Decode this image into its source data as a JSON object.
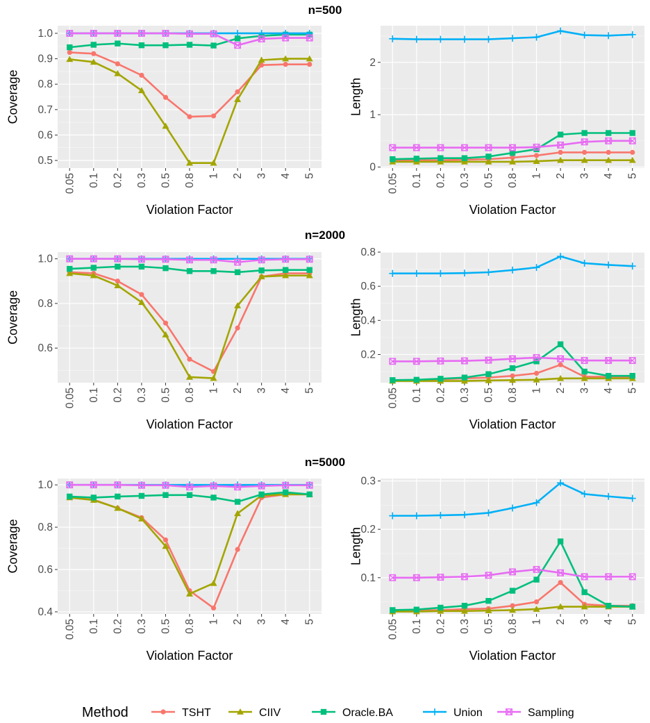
{
  "legend": {
    "title": "Method",
    "items": [
      {
        "label": "TSHT",
        "color": "#F8766D",
        "shape": "circle"
      },
      {
        "label": "CIIV",
        "color": "#A3A500",
        "shape": "triangle"
      },
      {
        "label": "Oracle.BA",
        "color": "#00BF7D",
        "shape": "square"
      },
      {
        "label": "Union",
        "color": "#00B0F6",
        "shape": "plus"
      },
      {
        "label": "Sampling",
        "color": "#E76BF3",
        "shape": "square-x"
      }
    ]
  },
  "chart_data": [
    {
      "type": "line",
      "title": "n=500",
      "xlabel": "Violation Factor",
      "ylabel": "Coverage",
      "categories": [
        "0.05",
        "0.1",
        "0.2",
        "0.3",
        "0.5",
        "0.8",
        "1",
        "2",
        "3",
        "4",
        "5"
      ],
      "ylim": [
        0.47,
        1.03
      ],
      "yticks": [
        0.5,
        0.6,
        0.7,
        0.8,
        0.9,
        1.0
      ],
      "ytick_labels": [
        "0.5",
        "0.6",
        "0.7",
        "0.8",
        "0.9",
        "1.0"
      ],
      "series": [
        {
          "name": "TSHT",
          "values": [
            0.925,
            0.92,
            0.88,
            0.835,
            0.748,
            0.672,
            0.675,
            0.77,
            0.875,
            0.878,
            0.878
          ]
        },
        {
          "name": "CIIV",
          "values": [
            0.898,
            0.887,
            0.842,
            0.775,
            0.635,
            0.49,
            0.49,
            0.74,
            0.895,
            0.9,
            0.9
          ]
        },
        {
          "name": "Oracle.BA",
          "values": [
            0.945,
            0.955,
            0.96,
            0.953,
            0.953,
            0.955,
            0.952,
            0.98,
            0.99,
            0.995,
            0.995
          ]
        },
        {
          "name": "Union",
          "values": [
            1.0,
            1.0,
            1.0,
            1.0,
            1.0,
            1.0,
            1.0,
            1.0,
            1.0,
            1.0,
            1.0
          ]
        },
        {
          "name": "Sampling",
          "values": [
            1.0,
            1.0,
            1.0,
            1.0,
            1.0,
            0.998,
            0.998,
            0.953,
            0.978,
            0.982,
            0.982
          ]
        }
      ]
    },
    {
      "type": "line",
      "title": "",
      "xlabel": "Violation Factor",
      "ylabel": "Length",
      "categories": [
        "0.05",
        "0.1",
        "0.2",
        "0.3",
        "0.5",
        "0.8",
        "1",
        "2",
        "3",
        "4",
        "5"
      ],
      "ylim": [
        -0.02,
        2.7
      ],
      "yticks": [
        0,
        1,
        2
      ],
      "ytick_labels": [
        "0",
        "1",
        "2"
      ],
      "series": [
        {
          "name": "TSHT",
          "values": [
            0.13,
            0.13,
            0.13,
            0.14,
            0.15,
            0.18,
            0.22,
            0.28,
            0.28,
            0.28,
            0.28
          ]
        },
        {
          "name": "CIIV",
          "values": [
            0.1,
            0.1,
            0.1,
            0.1,
            0.1,
            0.1,
            0.11,
            0.13,
            0.13,
            0.13,
            0.13
          ]
        },
        {
          "name": "Oracle.BA",
          "values": [
            0.15,
            0.16,
            0.17,
            0.17,
            0.2,
            0.27,
            0.34,
            0.62,
            0.65,
            0.65,
            0.65
          ]
        },
        {
          "name": "Union",
          "values": [
            2.45,
            2.44,
            2.44,
            2.44,
            2.44,
            2.46,
            2.48,
            2.6,
            2.52,
            2.51,
            2.53
          ]
        },
        {
          "name": "Sampling",
          "values": [
            0.37,
            0.37,
            0.37,
            0.37,
            0.37,
            0.37,
            0.38,
            0.42,
            0.48,
            0.5,
            0.5
          ]
        }
      ]
    },
    {
      "type": "line",
      "title": "n=2000",
      "xlabel": "Violation Factor",
      "ylabel": "Coverage",
      "categories": [
        "0.05",
        "0.1",
        "0.2",
        "0.3",
        "0.5",
        "0.8",
        "1",
        "2",
        "3",
        "4",
        "5"
      ],
      "ylim": [
        0.445,
        1.03
      ],
      "yticks": [
        0.6,
        0.8,
        1.0
      ],
      "ytick_labels": [
        "0.6",
        "0.8",
        "1.0"
      ],
      "series": [
        {
          "name": "TSHT",
          "values": [
            0.94,
            0.935,
            0.9,
            0.84,
            0.712,
            0.55,
            0.495,
            0.69,
            0.92,
            0.935,
            0.935
          ]
        },
        {
          "name": "CIIV",
          "values": [
            0.935,
            0.925,
            0.88,
            0.805,
            0.66,
            0.47,
            0.465,
            0.79,
            0.92,
            0.925,
            0.925
          ]
        },
        {
          "name": "Oracle.BA",
          "values": [
            0.955,
            0.96,
            0.965,
            0.965,
            0.958,
            0.945,
            0.945,
            0.94,
            0.948,
            0.95,
            0.95
          ]
        },
        {
          "name": "Union",
          "values": [
            1.0,
            1.0,
            1.0,
            1.0,
            1.0,
            1.0,
            1.0,
            1.0,
            1.0,
            1.0,
            1.0
          ]
        },
        {
          "name": "Sampling",
          "values": [
            1.0,
            1.0,
            1.0,
            0.998,
            0.998,
            0.995,
            0.995,
            0.985,
            0.995,
            0.998,
            0.998
          ]
        }
      ]
    },
    {
      "type": "line",
      "title": "",
      "xlabel": "Violation Factor",
      "ylabel": "Length",
      "categories": [
        "0.05",
        "0.1",
        "0.2",
        "0.3",
        "0.5",
        "0.8",
        "1",
        "2",
        "3",
        "4",
        "5"
      ],
      "ylim": [
        0.035,
        0.8
      ],
      "yticks": [
        0.2,
        0.4,
        0.6,
        0.8
      ],
      "ytick_labels": [
        "0.2",
        "0.4",
        "0.6",
        "0.8"
      ],
      "series": [
        {
          "name": "TSHT",
          "values": [
            0.05,
            0.05,
            0.055,
            0.06,
            0.065,
            0.075,
            0.09,
            0.14,
            0.07,
            0.07,
            0.07
          ]
        },
        {
          "name": "CIIV",
          "values": [
            0.045,
            0.045,
            0.045,
            0.045,
            0.048,
            0.05,
            0.052,
            0.06,
            0.06,
            0.06,
            0.06
          ]
        },
        {
          "name": "Oracle.BA",
          "values": [
            0.05,
            0.052,
            0.058,
            0.065,
            0.085,
            0.12,
            0.16,
            0.26,
            0.1,
            0.075,
            0.075
          ]
        },
        {
          "name": "Union",
          "values": [
            0.675,
            0.675,
            0.675,
            0.677,
            0.682,
            0.695,
            0.71,
            0.775,
            0.735,
            0.725,
            0.718
          ]
        },
        {
          "name": "Sampling",
          "values": [
            0.16,
            0.16,
            0.162,
            0.163,
            0.167,
            0.175,
            0.182,
            0.175,
            0.165,
            0.165,
            0.165
          ]
        }
      ]
    },
    {
      "type": "line",
      "title": "n=5000",
      "xlabel": "Violation Factor",
      "ylabel": "Coverage",
      "categories": [
        "0.05",
        "0.1",
        "0.2",
        "0.3",
        "0.5",
        "0.8",
        "1",
        "2",
        "3",
        "4",
        "5"
      ],
      "ylim": [
        0.39,
        1.03
      ],
      "yticks": [
        0.4,
        0.6,
        0.8,
        1.0
      ],
      "ytick_labels": [
        "0.4",
        "0.6",
        "0.8",
        "1.0"
      ],
      "series": [
        {
          "name": "TSHT",
          "values": [
            0.94,
            0.93,
            0.89,
            0.845,
            0.74,
            0.5,
            0.418,
            0.695,
            0.94,
            0.955,
            0.955
          ]
        },
        {
          "name": "CIIV",
          "values": [
            0.94,
            0.928,
            0.89,
            0.84,
            0.71,
            0.485,
            0.535,
            0.865,
            0.95,
            0.955,
            0.955
          ]
        },
        {
          "name": "Oracle.BA",
          "values": [
            0.945,
            0.94,
            0.945,
            0.948,
            0.952,
            0.952,
            0.94,
            0.92,
            0.955,
            0.965,
            0.955
          ]
        },
        {
          "name": "Union",
          "values": [
            1.0,
            1.0,
            1.0,
            1.0,
            1.0,
            1.0,
            1.0,
            1.0,
            1.0,
            1.0,
            1.0
          ]
        },
        {
          "name": "Sampling",
          "values": [
            1.0,
            1.0,
            1.0,
            0.998,
            0.998,
            0.99,
            0.995,
            0.99,
            0.995,
            0.998,
            0.998
          ]
        }
      ]
    },
    {
      "type": "line",
      "title": "",
      "xlabel": "Violation Factor",
      "ylabel": "Length",
      "categories": [
        "0.05",
        "0.1",
        "0.2",
        "0.3",
        "0.5",
        "0.8",
        "1",
        "2",
        "3",
        "4",
        "5"
      ],
      "ylim": [
        0.025,
        0.305
      ],
      "yticks": [
        0.1,
        0.2,
        0.3
      ],
      "ytick_labels": [
        "0.1",
        "0.2",
        "0.3"
      ],
      "series": [
        {
          "name": "TSHT",
          "values": [
            0.032,
            0.032,
            0.033,
            0.035,
            0.036,
            0.042,
            0.05,
            0.09,
            0.045,
            0.042,
            0.042
          ]
        },
        {
          "name": "CIIV",
          "values": [
            0.03,
            0.03,
            0.031,
            0.031,
            0.032,
            0.033,
            0.035,
            0.04,
            0.04,
            0.04,
            0.04
          ]
        },
        {
          "name": "Oracle.BA",
          "values": [
            0.033,
            0.034,
            0.038,
            0.042,
            0.052,
            0.073,
            0.096,
            0.175,
            0.07,
            0.042,
            0.04
          ]
        },
        {
          "name": "Union",
          "values": [
            0.228,
            0.228,
            0.229,
            0.23,
            0.234,
            0.244,
            0.255,
            0.296,
            0.273,
            0.268,
            0.264
          ]
        },
        {
          "name": "Sampling",
          "values": [
            0.1,
            0.1,
            0.101,
            0.102,
            0.105,
            0.112,
            0.117,
            0.11,
            0.102,
            0.102,
            0.102
          ]
        }
      ]
    }
  ]
}
